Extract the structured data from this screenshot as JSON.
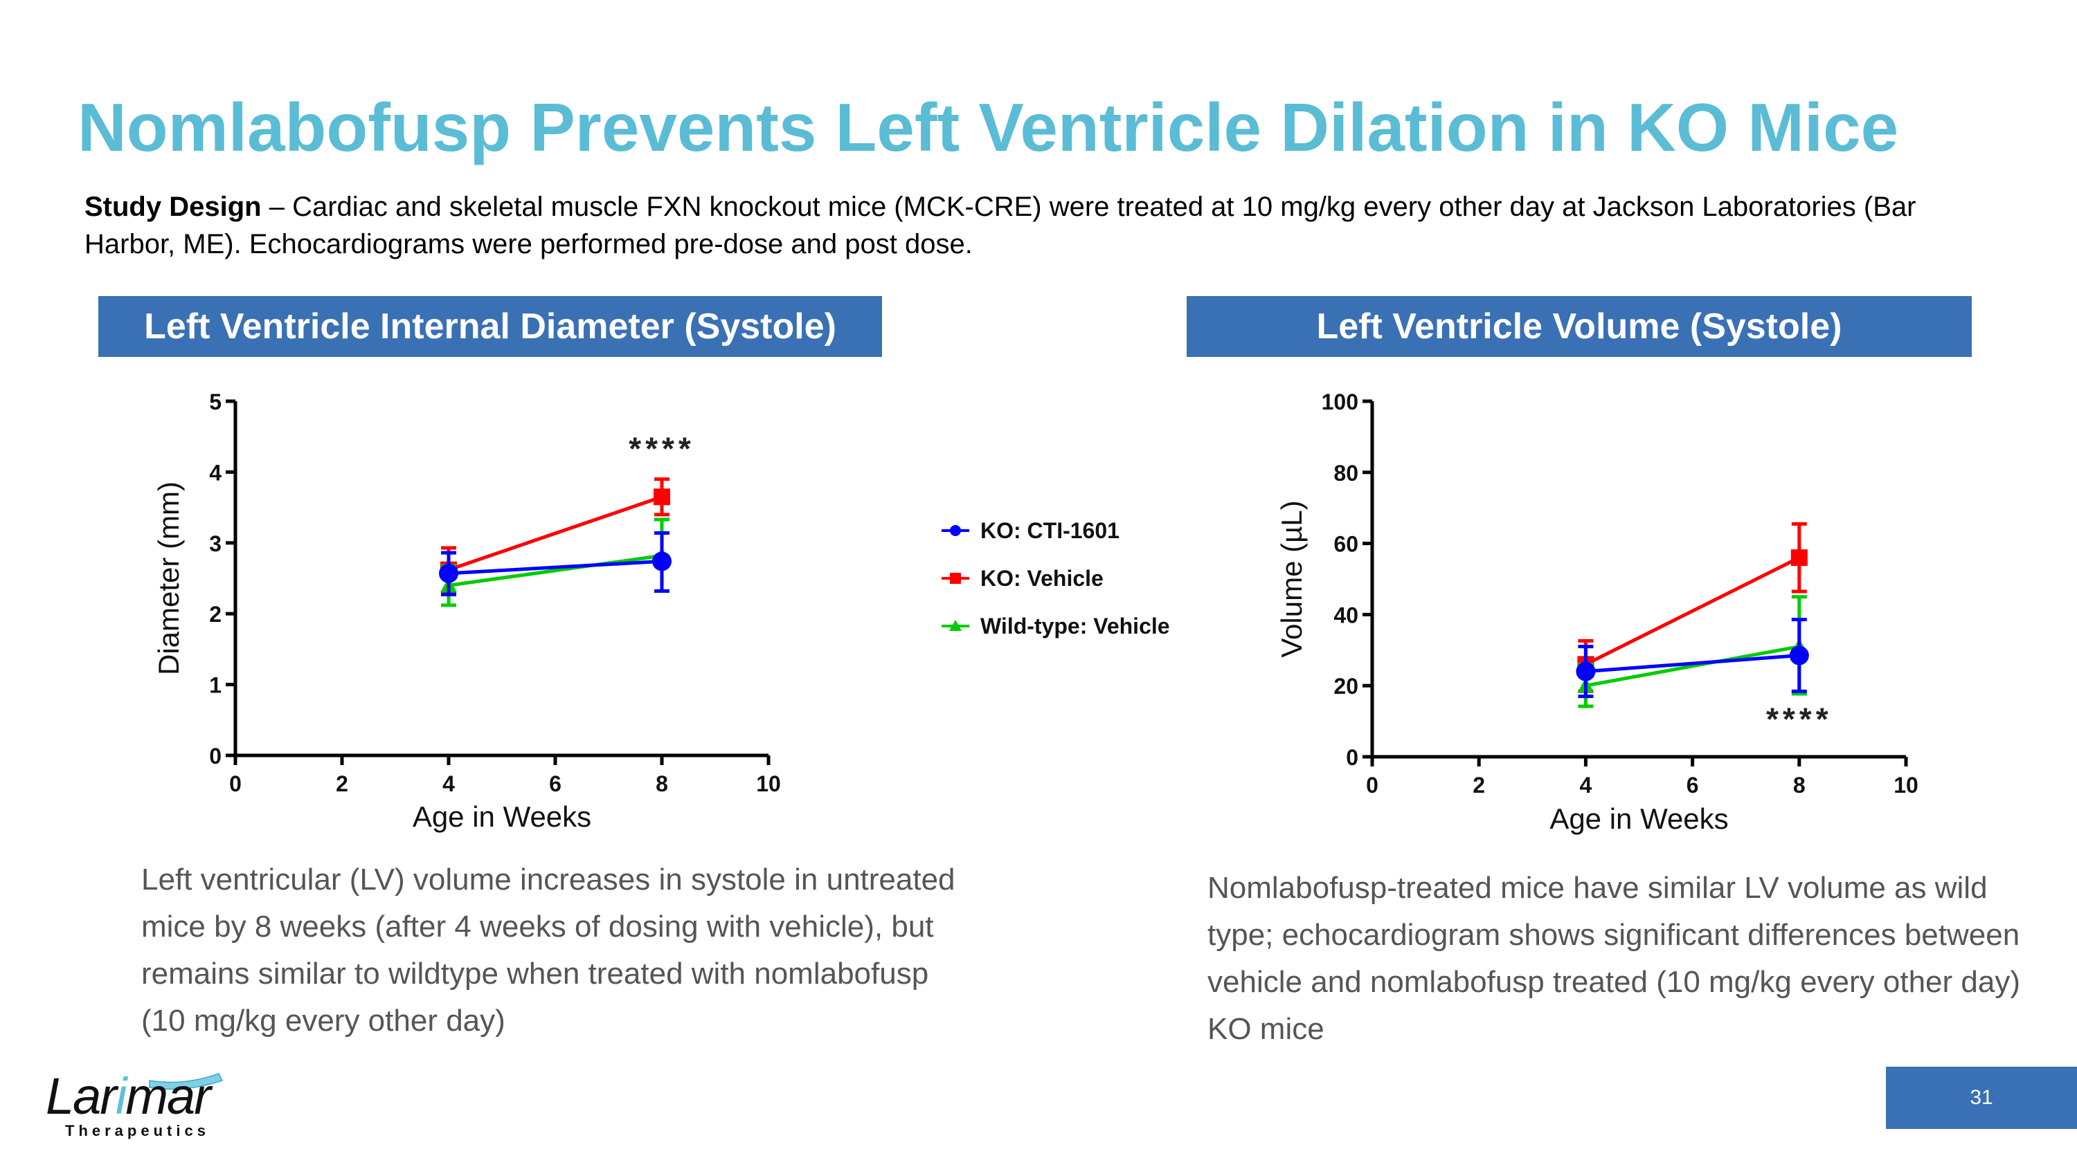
{
  "title": "Nomlabofusp Prevents Left Ventricle Dilation in KO Mice",
  "study": {
    "label": "Study Design",
    "text": " – Cardiac and skeletal muscle FXN knockout mice (MCK-CRE) were treated at 10 mg/kg every other day at Jackson Laboratories (Bar Harbor, ME). Echocardiograms were performed pre-dose and post dose."
  },
  "left_panel": {
    "header": "Left Ventricle Internal Diameter (Systole)",
    "caption": "Left ventricular (LV) volume increases in systole in untreated mice by 8 weeks (after 4 weeks of dosing with vehicle), but remains similar to wildtype when treated with nomlabofusp (10 mg/kg every other day)"
  },
  "right_panel": {
    "header": "Left Ventricle Volume (Systole)",
    "caption": "Nomlabofusp-treated mice have similar LV volume as wild type; echocardiogram shows significant differences between vehicle and nomlabofusp treated (10 mg/kg every other day) KO mice"
  },
  "legend": [
    {
      "label": "KO: CTI-1601",
      "color": "#0000ff",
      "marker": "circle"
    },
    {
      "label": "KO: Vehicle",
      "color": "#ff0000",
      "marker": "square"
    },
    {
      "label": "Wild-type: Vehicle",
      "color": "#00cc00",
      "marker": "triangle"
    }
  ],
  "chart_data": [
    {
      "type": "line",
      "xlabel": "Age in Weeks",
      "ylabel": "Diameter (mm)",
      "xlim": [
        0,
        10
      ],
      "ylim": [
        0,
        5
      ],
      "xticks": [
        "0",
        "2",
        "4",
        "6",
        "8",
        "10"
      ],
      "yticks": [
        "0",
        "1",
        "2",
        "3",
        "4",
        "5"
      ],
      "annotation": {
        "text": "****",
        "x": 8,
        "y": 4.35
      },
      "series": [
        {
          "name": "KO: Vehicle",
          "color": "#ff0000",
          "marker": "square",
          "x": [
            4,
            8
          ],
          "y": [
            2.62,
            3.65
          ],
          "err_low": [
            2.3,
            3.4
          ],
          "err_high": [
            2.93,
            3.9
          ]
        },
        {
          "name": "Wild-type: Vehicle",
          "color": "#00cc00",
          "marker": "triangle",
          "x": [
            4,
            8
          ],
          "y": [
            2.4,
            2.82
          ],
          "err_low": [
            2.12,
            2.32
          ],
          "err_high": [
            2.68,
            3.33
          ]
        },
        {
          "name": "KO: CTI-1601",
          "color": "#0000ff",
          "marker": "circle",
          "x": [
            4,
            8
          ],
          "y": [
            2.57,
            2.74
          ],
          "err_low": [
            2.27,
            2.32
          ],
          "err_high": [
            2.86,
            3.14
          ]
        }
      ]
    },
    {
      "type": "line",
      "xlabel": "Age in Weeks",
      "ylabel": "Volume  (µL)",
      "xlim": [
        0,
        10
      ],
      "ylim": [
        0,
        100
      ],
      "xticks": [
        "0",
        "2",
        "4",
        "6",
        "8",
        "10"
      ],
      "yticks": [
        "0",
        "20",
        "40",
        "60",
        "80",
        "100"
      ],
      "annotation": {
        "text": "****",
        "x": 8,
        "y": 11
      },
      "series": [
        {
          "name": "KO: Vehicle",
          "color": "#ff0000",
          "marker": "square",
          "x": [
            4,
            8
          ],
          "y": [
            26,
            56
          ],
          "err_low": [
            18.4,
            46.5
          ],
          "err_high": [
            32.6,
            65.5
          ]
        },
        {
          "name": "Wild-type: Vehicle",
          "color": "#00cc00",
          "marker": "triangle",
          "x": [
            4,
            8
          ],
          "y": [
            20,
            31
          ],
          "err_low": [
            14.2,
            17.7
          ],
          "err_high": [
            26,
            45
          ]
        },
        {
          "name": "KO: CTI-1601",
          "color": "#0000ff",
          "marker": "circle",
          "x": [
            4,
            8
          ],
          "y": [
            24,
            28.5
          ],
          "err_low": [
            17,
            18.4
          ],
          "err_high": [
            31,
            38.6
          ]
        }
      ]
    }
  ],
  "logo": {
    "text": "Larimar",
    "subtext": "Therapeutics",
    "accent": "#5bc0de"
  },
  "page_number": "31",
  "colors": {
    "title": "#5bbcd5",
    "header_bg": "#3a70b4"
  }
}
